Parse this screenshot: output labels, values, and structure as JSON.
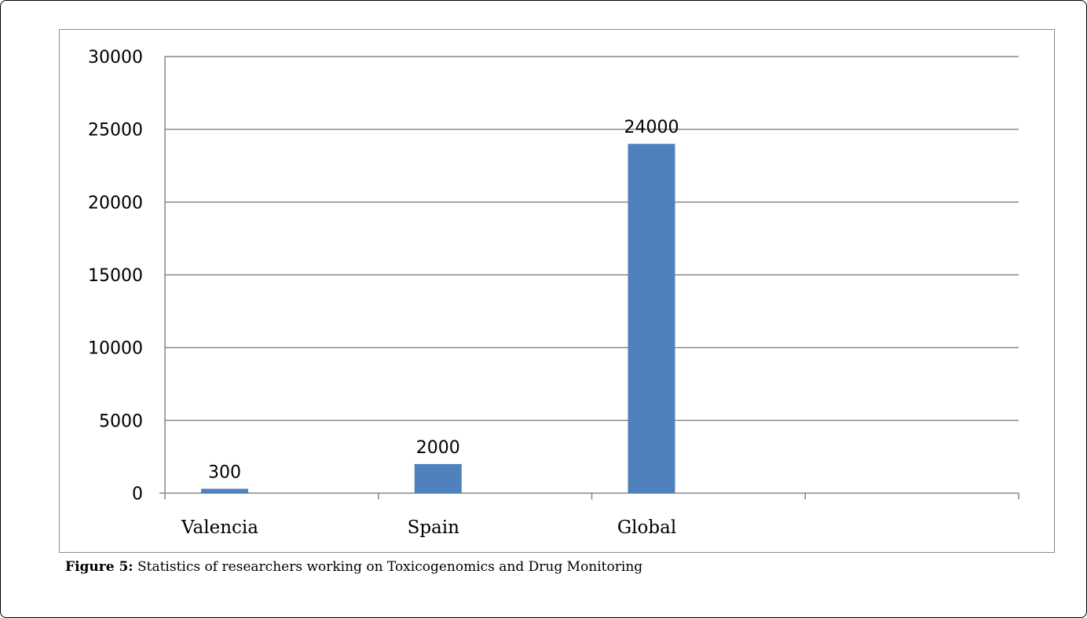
{
  "caption": {
    "label": "Figure 5:",
    "text": "Statistics of researchers working on Toxicogenomics and Drug Monitoring"
  },
  "chart_data": {
    "type": "bar",
    "categories": [
      "Valencia",
      "Spain",
      "Global"
    ],
    "values": [
      300,
      2000,
      24000
    ],
    "data_labels": [
      "300",
      "2000",
      "24000"
    ],
    "ylim": [
      0,
      30000
    ],
    "yticks": [
      0,
      5000,
      10000,
      15000,
      20000,
      25000,
      30000
    ],
    "xlabel": "",
    "ylabel": "",
    "grid": true,
    "legend": "none",
    "bar_color": "#4f81bd",
    "grid_color": "#868686"
  }
}
